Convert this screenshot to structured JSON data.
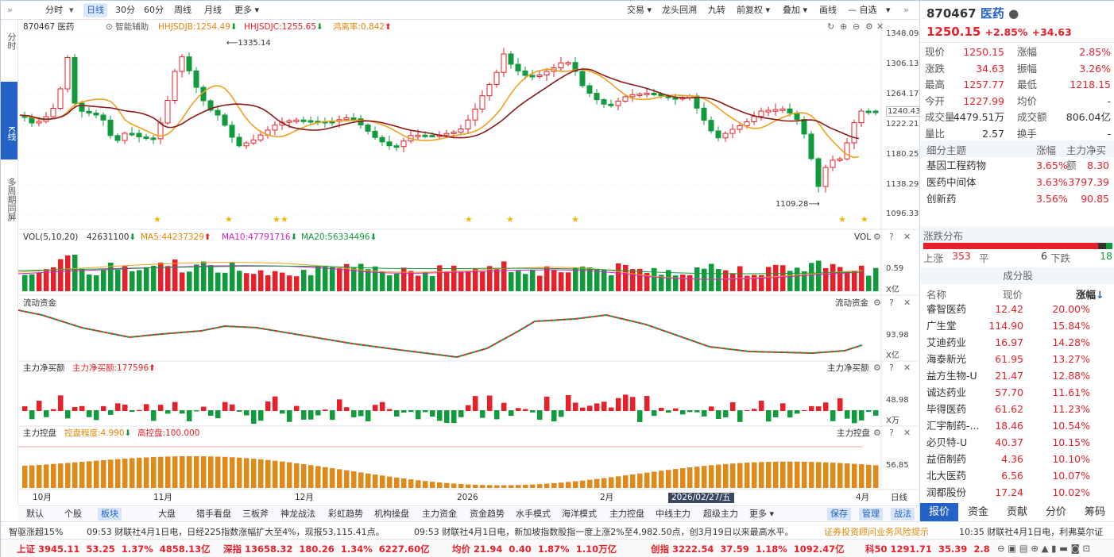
{
  "toolbar": {
    "left": [
      "分时",
      "日线",
      "30分",
      "60分",
      "周线",
      "月线",
      "更多"
    ],
    "right": [
      "交易",
      "龙头回溯",
      "九转",
      "前复权",
      "叠加",
      "画线",
      "自选"
    ]
  },
  "left_tabs": [
    "分时",
    "K线",
    "多周期同屏"
  ],
  "main": {
    "code_name": "870467 医药",
    "assist": "智能辅助",
    "hhjsdjb": "HHJSDJB:1254.49",
    "hhjsdjc": "HHJSDJC:1255.65",
    "offset": "鸿离率:0.842",
    "yticks": [
      "1348.09",
      "1306.13",
      "1264.17",
      "1240.43",
      "1222.21",
      "1180.25",
      "1138.29",
      "1096.33"
    ],
    "high_label": "1335.14",
    "low_label": "1109.28"
  },
  "vol": {
    "label": "VOL(5,10,20)",
    "v": "42631100",
    "ma5": "MA5:44237329",
    "ma10": "MA10:47791716",
    "ma20": "MA20:56334496",
    "tag": "VOL",
    "ytick": "0.59",
    "unit": "X亿"
  },
  "flow": {
    "label": "流动资金",
    "tag": "流动资金",
    "ytick": "93.98",
    "unit": "X亿"
  },
  "net": {
    "label": "主力净买额",
    "value": "主力净买额:177596",
    "tag": "主力净买额",
    "ytick": "48.98",
    "unit": "X万"
  },
  "ctrl": {
    "label": "主力控盘",
    "degree": "控盘程度:4.990",
    "high": "高控盘:100.000",
    "tag": "主力控盘",
    "ytick": "56.85"
  },
  "xaxis": {
    "labels": [
      "10月",
      "11月",
      "12月",
      "2026",
      "2月",
      "2026/02/27/五",
      "4月"
    ],
    "period": "日线"
  },
  "bottom_tabs": [
    "默认",
    "个股",
    "板块",
    "大盘",
    "猎手看盘",
    "三板斧",
    "神龙战法",
    "彩虹趋势",
    "机构操盘",
    "主力资金",
    "资金趋势",
    "水手模式",
    "海洋模式",
    "主力控盘",
    "中线主力",
    "超级主力",
    "更多",
    "保存",
    "管理",
    "战法"
  ],
  "news": {
    "badge": "智驱涨超15%",
    "n1": "09:53 财联社4月1日电，日经225指数涨幅扩大至4%，现报53,115.41点。",
    "n2": "09:53 财联社4月1日电，新加坡指数股指一度上涨2%至4,982.50点，创3月19日以来最高水平。",
    "n3": "证券投资顾问业务风险提示",
    "n4": "10:35 财联社4月1日电，利弗莫尔证"
  },
  "indices": [
    {
      "name": "上证",
      "price": "3945.11",
      "chg": "53.25",
      "pct": "1.37%",
      "amt": "4858.13亿"
    },
    {
      "name": "深指",
      "price": "13658.32",
      "chg": "180.26",
      "pct": "1.34%",
      "amt": "6227.60亿"
    },
    {
      "name": "均价",
      "price": "21.94",
      "chg": "0.40",
      "pct": "1.87%",
      "amt": "1.10万亿"
    },
    {
      "name": "创指",
      "price": "3222.54",
      "chg": "37.59",
      "pct": "1.18%",
      "amt": "1092.47亿"
    },
    {
      "name": "科50",
      "price": "1291.71",
      "chg": "35.39",
      "pct": "2.8",
      "amt": ""
    }
  ],
  "panel": {
    "code": "870467",
    "name": "医药",
    "price": "1250.15",
    "pct": "+2.85%",
    "chg": "+34.63",
    "quote": [
      [
        "现价",
        "1250.15",
        "涨幅",
        "2.85%"
      ],
      [
        "涨跌",
        "34.63",
        "振幅",
        "3.26%"
      ],
      [
        "最高",
        "1257.77",
        "最低",
        "1218.15"
      ],
      [
        "今开",
        "1227.99",
        "均价",
        "-"
      ],
      [
        "成交量",
        "4479.51万",
        "成交额",
        "806.04亿"
      ],
      [
        "量比",
        "2.57",
        "换手",
        "-"
      ]
    ],
    "sub_header": [
      "细分主题",
      "涨幅",
      "主力净买额"
    ],
    "subs": [
      [
        "基因工程药物",
        "3.65%",
        "8.30"
      ],
      [
        "医药中间体",
        "3.63%",
        "3797.39"
      ],
      [
        "创新药",
        "3.56%",
        "90.85"
      ]
    ],
    "dist_title": "涨跌分布",
    "dist": {
      "up_label": "上涨",
      "up": "353",
      "flat_label": "平",
      "flat": "6",
      "down_label": "下跌",
      "down": "18"
    },
    "comp_title": "成分股",
    "comp_header": [
      "名称",
      "现价",
      "涨幅"
    ],
    "stocks": [
      [
        "睿智医药",
        "12.42",
        "20.00%"
      ],
      [
        "广生堂",
        "114.90",
        "15.84%"
      ],
      [
        "艾迪药业",
        "16.97",
        "14.28%"
      ],
      [
        "海泰新光",
        "61.95",
        "13.27%"
      ],
      [
        "益方生物-U",
        "21.47",
        "12.88%"
      ],
      [
        "诚达药业",
        "57.70",
        "11.61%"
      ],
      [
        "毕得医药",
        "61.62",
        "11.23%"
      ],
      [
        "汇宇制药-...",
        "18.46",
        "10.54%"
      ],
      [
        "必贝特-U",
        "40.37",
        "10.15%"
      ],
      [
        "益佰制药",
        "4.36",
        "10.10%"
      ],
      [
        "北大医药",
        "6.56",
        "10.07%"
      ],
      [
        "润都股份",
        "17.24",
        "10.02%"
      ]
    ],
    "tabs": [
      "报价",
      "资金",
      "贡献",
      "分价",
      "筹码"
    ]
  }
}
